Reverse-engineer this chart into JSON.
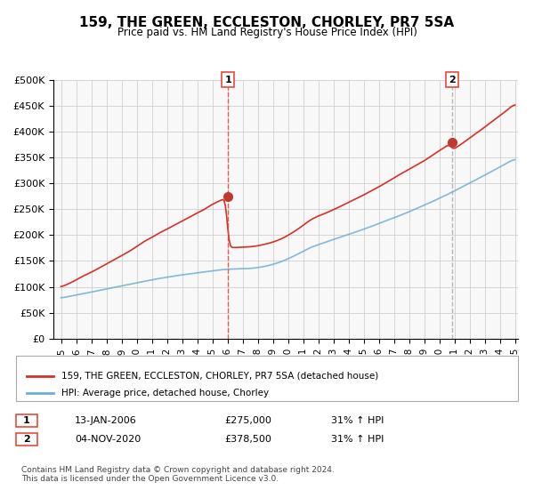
{
  "title": "159, THE GREEN, ECCLESTON, CHORLEY, PR7 5SA",
  "subtitle": "Price paid vs. HM Land Registry's House Price Index (HPI)",
  "legend_line1": "159, THE GREEN, ECCLESTON, CHORLEY, PR7 5SA (detached house)",
  "legend_line2": "HPI: Average price, detached house, Chorley",
  "sale1_label": "1",
  "sale1_date": "13-JAN-2006",
  "sale1_price": "£275,000",
  "sale1_hpi": "31% ↑ HPI",
  "sale2_label": "2",
  "sale2_date": "04-NOV-2020",
  "sale2_price": "£378,500",
  "sale2_hpi": "31% ↑ HPI",
  "footer": "Contains HM Land Registry data © Crown copyright and database right 2024.\nThis data is licensed under the Open Government Licence v3.0.",
  "hpi_color": "#6baed6",
  "price_color": "#d73027",
  "marker_color": "#c0392b",
  "vline_color": "#e74c3c",
  "background_color": "#ffffff",
  "grid_color": "#cccccc",
  "ylim": [
    0,
    500000
  ],
  "yticks": [
    0,
    50000,
    100000,
    150000,
    200000,
    250000,
    300000,
    350000,
    400000,
    450000,
    500000
  ],
  "sale1_year": 2006.04,
  "sale1_value": 275000,
  "sale2_year": 2020.84,
  "sale2_value": 378500
}
